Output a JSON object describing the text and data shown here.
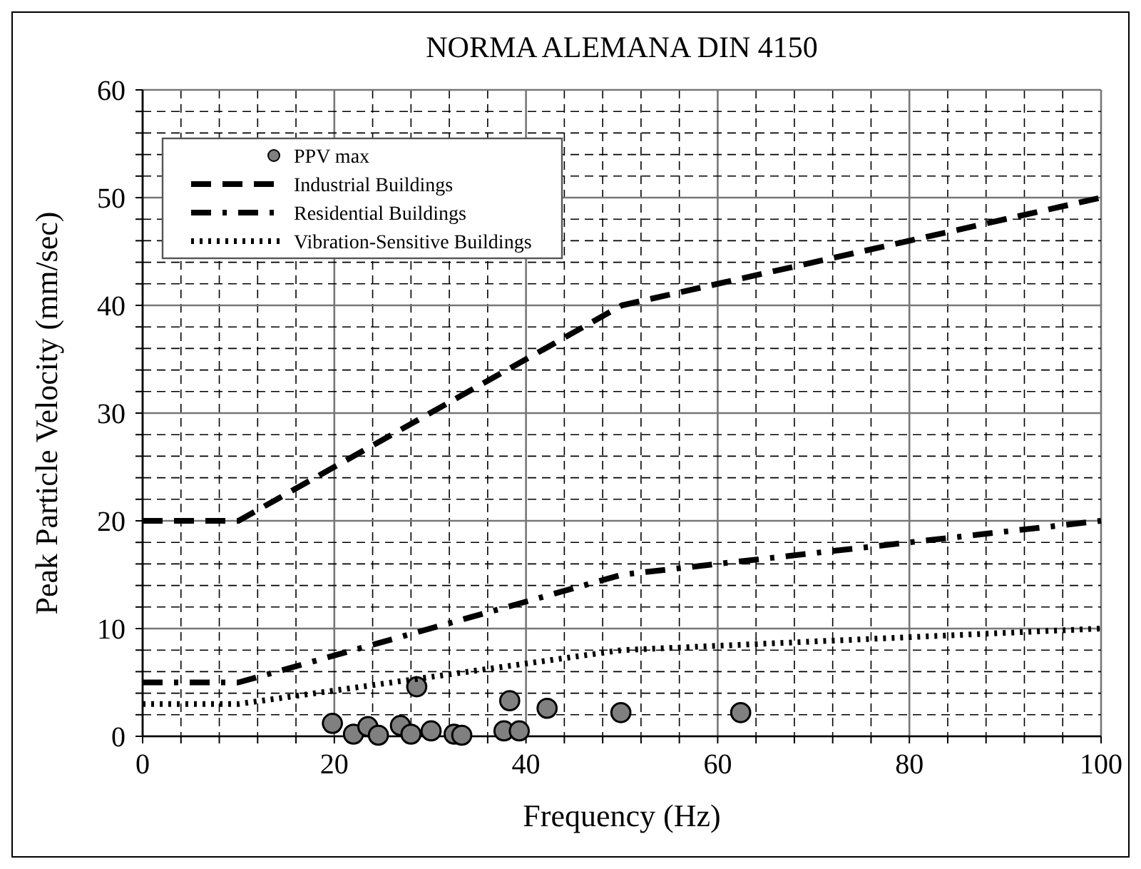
{
  "chart_data": {
    "type": "scatter",
    "title": "NORMA ALEMANA DIN 4150",
    "xlabel": "Frequency (Hz)",
    "ylabel": "Peak Particle Velocity (mm/sec)",
    "xlim": [
      0,
      100
    ],
    "ylim": [
      0,
      60
    ],
    "xticks": [
      0,
      {
        "value": 4,
        "label": null
      },
      {
        "value": 8,
        "label": null
      },
      {
        "value": 12,
        "label": null
      },
      {
        "value": 16,
        "label": null
      },
      20,
      {
        "value": 24,
        "label": null
      },
      {
        "value": 28,
        "label": null
      },
      {
        "value": 32,
        "label": null
      },
      {
        "value": 36,
        "label": null
      },
      40,
      {
        "value": 44,
        "label": null
      },
      {
        "value": 48,
        "label": null
      },
      {
        "value": 52,
        "label": null
      },
      {
        "value": 56,
        "label": null
      },
      60,
      {
        "value": 64,
        "label": null
      },
      {
        "value": 68,
        "label": null
      },
      {
        "value": 72,
        "label": null
      },
      {
        "value": 76,
        "label": null
      },
      80,
      {
        "value": 84,
        "label": null
      },
      {
        "value": 88,
        "label": null
      },
      {
        "value": 92,
        "label": null
      },
      {
        "value": 96,
        "label": null
      },
      100
    ],
    "yticks": [
      0,
      {
        "value": 2,
        "label": null
      },
      {
        "value": 4,
        "label": null
      },
      {
        "value": 6,
        "label": null
      },
      {
        "value": 8,
        "label": null
      },
      10,
      {
        "value": 12,
        "label": null
      },
      {
        "value": 14,
        "label": null
      },
      {
        "value": 16,
        "label": null
      },
      {
        "value": 18,
        "label": null
      },
      20,
      {
        "value": 22,
        "label": null
      },
      {
        "value": 24,
        "label": null
      },
      {
        "value": 26,
        "label": null
      },
      {
        "value": 28,
        "label": null
      },
      30,
      {
        "value": 32,
        "label": null
      },
      {
        "value": 34,
        "label": null
      },
      {
        "value": 36,
        "label": null
      },
      {
        "value": 38,
        "label": null
      },
      40,
      {
        "value": 42,
        "label": null
      },
      {
        "value": 44,
        "label": null
      },
      {
        "value": 46,
        "label": null
      },
      {
        "value": 48,
        "label": null
      },
      50,
      {
        "value": 52,
        "label": null
      },
      {
        "value": 54,
        "label": null
      },
      {
        "value": 56,
        "label": null
      },
      {
        "value": 58,
        "label": null
      },
      60
    ],
    "grid": true,
    "legend": "top left",
    "series": [
      {
        "name": "PPV max",
        "color": "#808080",
        "marker": "circle",
        "x": [
          19.8,
          22.0,
          23.5,
          24.6,
          26.9,
          28.0,
          28.6,
          30.1,
          32.5,
          33.3,
          37.7,
          38.3,
          39.3,
          42.2,
          49.9,
          62.4
        ],
        "values": [
          1.2,
          0.2,
          0.9,
          0.1,
          1.0,
          0.2,
          4.6,
          0.5,
          0.2,
          0.1,
          0.5,
          3.3,
          0.5,
          2.6,
          2.2,
          2.2
        ]
      },
      {
        "name": "Industrial Buildings",
        "type": "line",
        "color": "#000000",
        "line_style": "dashed",
        "x": [
          0,
          10,
          50,
          100
        ],
        "values": [
          20,
          20,
          40,
          50
        ]
      },
      {
        "name": "Residential Buildings",
        "type": "line",
        "color": "#000000",
        "line_style": "dashdot",
        "x": [
          0,
          10,
          50,
          100
        ],
        "values": [
          5,
          5,
          15,
          20
        ]
      },
      {
        "name": "Vibration-Sensitive Buildings",
        "type": "line",
        "color": "#000000",
        "line_style": "dotted",
        "x": [
          0,
          10,
          50,
          100
        ],
        "values": [
          3,
          3,
          8,
          10
        ]
      }
    ]
  }
}
